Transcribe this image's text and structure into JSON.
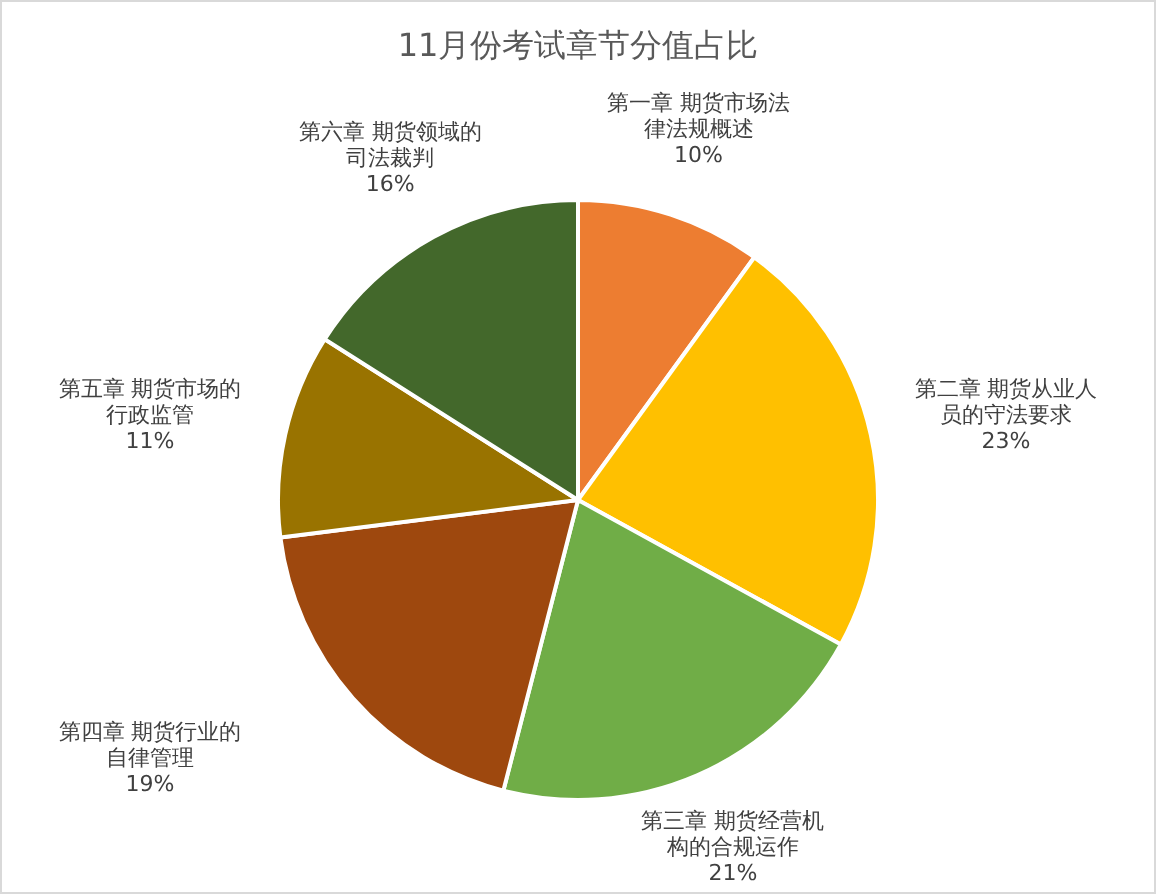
{
  "chart_data": {
    "type": "pie",
    "title": "11月份考试章节分值占比",
    "categories": [
      "第一章 期货市场法律法规概述",
      "第二章 期货从业人员的守法要求",
      "第三章 期货经营机构的合规运作",
      "第四章 期货行业的自律管理",
      "第五章 期货市场的行政监管",
      "第六章 期货领域的司法裁判"
    ],
    "values": [
      10,
      23,
      21,
      19,
      11,
      16
    ],
    "value_labels": [
      "10%",
      "23%",
      "21%",
      "19%",
      "11%",
      "16%"
    ],
    "colors": [
      "#ed7d31",
      "#ffc000",
      "#70ad47",
      "#9e480e",
      "#997300",
      "#43682b"
    ]
  }
}
